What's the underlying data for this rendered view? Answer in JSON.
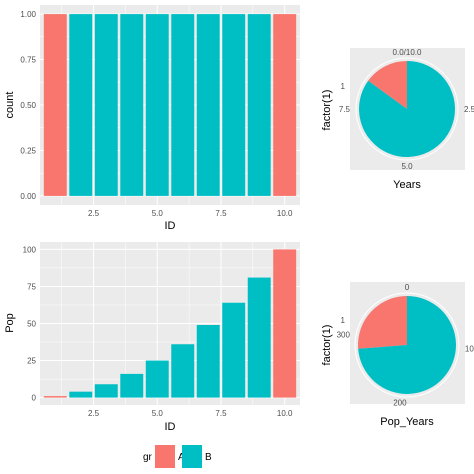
{
  "colors": {
    "A": "#F8766D",
    "B": "#00BFC4",
    "panel": "#EBEBEB",
    "grid": "#FFFFFF"
  },
  "chart_data": [
    {
      "type": "bar",
      "xlabel": "ID",
      "ylabel": "count",
      "x": [
        1,
        2,
        3,
        4,
        5,
        6,
        7,
        8,
        9,
        10
      ],
      "values": [
        1,
        1,
        1,
        1,
        1,
        1,
        1,
        1,
        1,
        1
      ],
      "group": [
        "A",
        "B",
        "B",
        "B",
        "B",
        "B",
        "B",
        "B",
        "B",
        "A"
      ],
      "xlim": [
        0.4,
        10.6
      ],
      "ylim": [
        -0.05,
        1.05
      ],
      "xticks": [
        2.5,
        5.0,
        7.5,
        10.0
      ],
      "xtick_labels": [
        "2.5",
        "5.0",
        "7.5",
        "10.0"
      ],
      "yticks": [
        0,
        0.25,
        0.5,
        0.75,
        1.0
      ],
      "ytick_labels": [
        "0.00",
        "0.25",
        "0.50",
        "0.75",
        "1.00"
      ],
      "grid": true
    },
    {
      "type": "pie",
      "xlabel": "Years",
      "ylabel": "factor(1)",
      "y_tick_label": "1",
      "slices": [
        {
          "group": "A",
          "value": 1.5
        },
        {
          "group": "B",
          "value": 8.5
        }
      ],
      "range": [
        0,
        10
      ],
      "ticks": [
        {
          "value": 0,
          "label": "0.0/10.0"
        },
        {
          "value": 2.5,
          "label": "2.5"
        },
        {
          "value": 5.0,
          "label": "5.0"
        },
        {
          "value": 7.5,
          "label": "7.5"
        }
      ]
    },
    {
      "type": "bar",
      "xlabel": "ID",
      "ylabel": "Pop",
      "x": [
        1,
        2,
        3,
        4,
        5,
        6,
        7,
        8,
        9,
        10
      ],
      "values": [
        1,
        4,
        9,
        16,
        25,
        36,
        49,
        64,
        81,
        100
      ],
      "group": [
        "A",
        "B",
        "B",
        "B",
        "B",
        "B",
        "B",
        "B",
        "B",
        "A"
      ],
      "xlim": [
        0.4,
        10.6
      ],
      "ylim": [
        -5,
        105
      ],
      "xticks": [
        2.5,
        5.0,
        7.5,
        10.0
      ],
      "xtick_labels": [
        "2.5",
        "5.0",
        "7.5",
        "10.0"
      ],
      "yticks": [
        0,
        25,
        50,
        75,
        100
      ],
      "ytick_labels": [
        "0",
        "25",
        "50",
        "75",
        "100"
      ],
      "grid": true
    },
    {
      "type": "pie",
      "xlabel": "Pop_Years",
      "ylabel": "factor(1)",
      "y_tick_label": "1",
      "slices": [
        {
          "group": "A",
          "value": 101
        },
        {
          "group": "B",
          "value": 284
        }
      ],
      "range": [
        0,
        385
      ],
      "ticks": [
        {
          "value": 0,
          "label": "0"
        },
        {
          "value": 100,
          "label": "100"
        },
        {
          "value": 200,
          "label": "200"
        },
        {
          "value": 300,
          "label": "300"
        }
      ]
    }
  ],
  "legend": {
    "title": "gr",
    "items": [
      {
        "label": "A",
        "color": "#F8766D"
      },
      {
        "label": "B",
        "color": "#00BFC4"
      }
    ],
    "placement": "bottom"
  }
}
